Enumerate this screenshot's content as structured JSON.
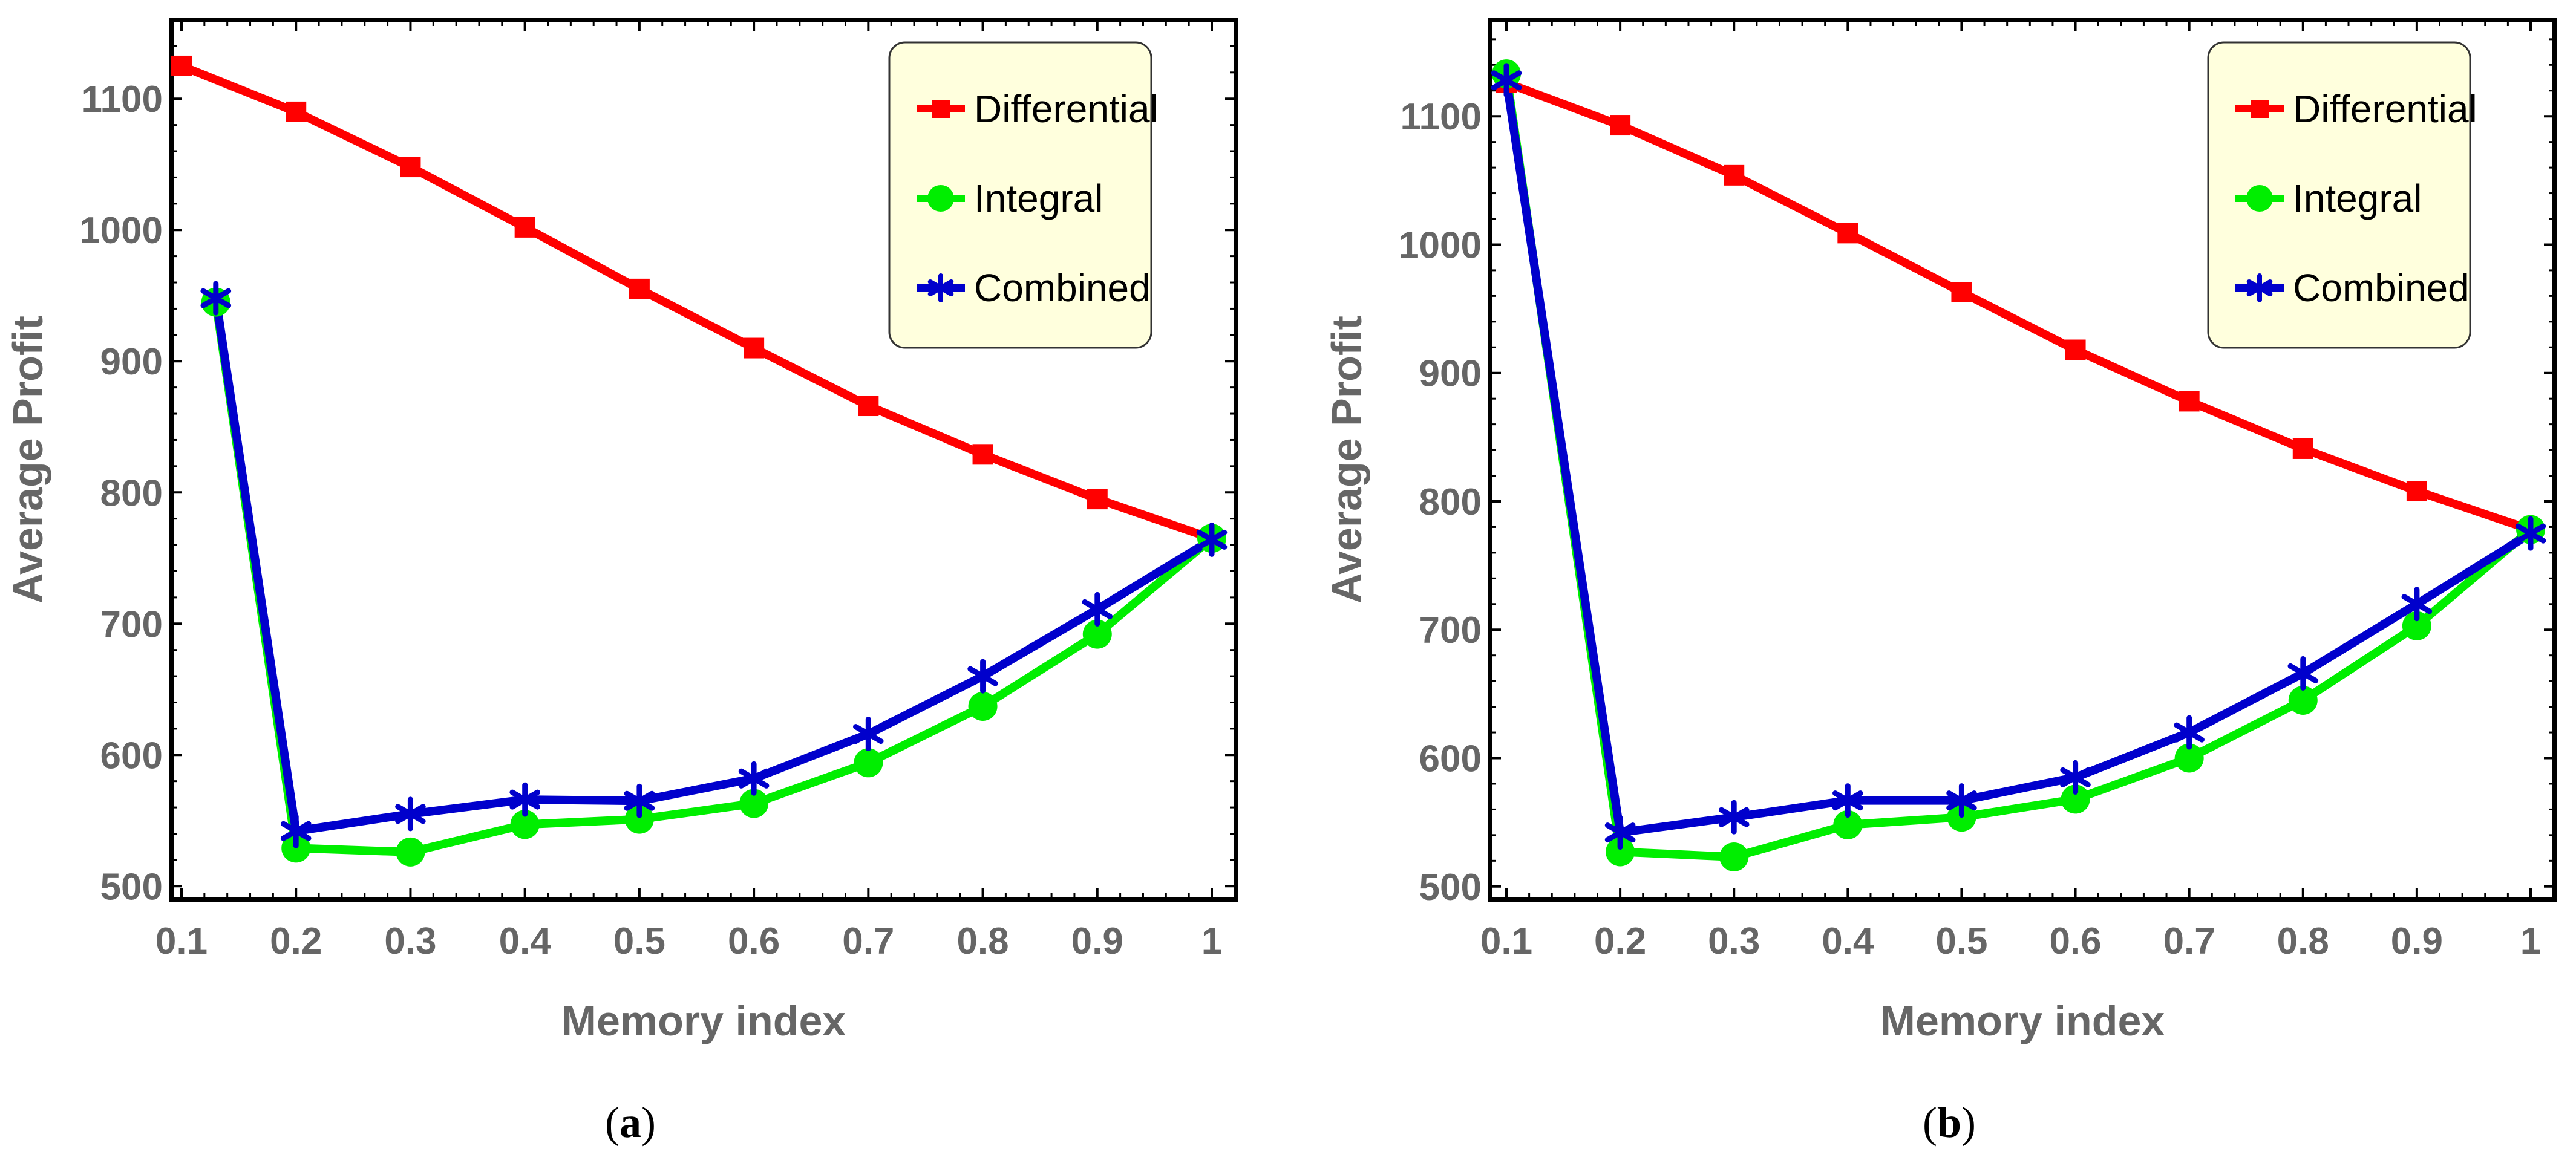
{
  "colors": {
    "Differential": "#ff0000",
    "Integral": "#00ee00",
    "Combined": "#0000cc",
    "legend_bg": "#ffffdd",
    "tick": "#666666"
  },
  "chart_data": [
    {
      "type": "line",
      "caption_letter": "a",
      "xlabel": "Memory index",
      "ylabel": "Average Profit",
      "xlim": [
        0.1,
        1.0
      ],
      "ylim": [
        490,
        1160
      ],
      "xticks": [
        0.1,
        0.2,
        0.3,
        0.4,
        0.5,
        0.6,
        0.7,
        0.8,
        0.9,
        1.0
      ],
      "xtick_labels": [
        "0.1",
        "0.2",
        "0.3",
        "0.4",
        "0.5",
        "0.6",
        "0.7",
        "0.8",
        "0.9",
        "1"
      ],
      "yticks": [
        500,
        600,
        700,
        800,
        900,
        1000,
        1100
      ],
      "ytick_labels": [
        "500",
        "600",
        "700",
        "800",
        "900",
        "1000",
        "1100"
      ],
      "legend": [
        "Differential",
        "Integral",
        "Combined"
      ],
      "legend_position": "top-right",
      "series": [
        {
          "name": "Differential",
          "marker": "square",
          "x": [
            0.1,
            0.2,
            0.3,
            0.4,
            0.5,
            0.6,
            0.7,
            0.8,
            0.9,
            1.0
          ],
          "y": [
            1125,
            1090,
            1048,
            1002,
            955,
            910,
            866,
            829,
            795,
            765
          ]
        },
        {
          "name": "Integral",
          "marker": "circle",
          "x": [
            0.13,
            0.2,
            0.3,
            0.4,
            0.5,
            0.6,
            0.7,
            0.8,
            0.9,
            1.0
          ],
          "y": [
            945,
            529,
            526,
            547,
            551,
            563,
            594,
            637,
            692,
            765
          ]
        },
        {
          "name": "Combined",
          "marker": "star",
          "x": [
            0.13,
            0.2,
            0.3,
            0.4,
            0.5,
            0.6,
            0.7,
            0.8,
            0.9,
            1.0
          ],
          "y": [
            948,
            542,
            555,
            566,
            565,
            582,
            616,
            660,
            711,
            764
          ]
        }
      ]
    },
    {
      "type": "line",
      "caption_letter": "b",
      "xlabel": "Memory index",
      "ylabel": "Average Profit",
      "xlim": [
        0.1,
        1.0
      ],
      "ylim": [
        490,
        1175
      ],
      "xticks": [
        0.1,
        0.2,
        0.3,
        0.4,
        0.5,
        0.6,
        0.7,
        0.8,
        0.9,
        1.0
      ],
      "xtick_labels": [
        "0.1",
        "0.2",
        "0.3",
        "0.4",
        "0.5",
        "0.6",
        "0.7",
        "0.8",
        "0.9",
        "1"
      ],
      "yticks": [
        500,
        600,
        700,
        800,
        900,
        1000,
        1100
      ],
      "ytick_labels": [
        "500",
        "600",
        "700",
        "800",
        "900",
        "1000",
        "1100"
      ],
      "legend": [
        "Differential",
        "Integral",
        "Combined"
      ],
      "legend_position": "top-right",
      "series": [
        {
          "name": "Differential",
          "marker": "square",
          "x": [
            0.1,
            0.2,
            0.3,
            0.4,
            0.5,
            0.6,
            0.7,
            0.8,
            0.9,
            1.0
          ],
          "y": [
            1126,
            1093,
            1054,
            1009,
            963,
            918,
            878,
            841,
            808,
            778
          ]
        },
        {
          "name": "Integral",
          "marker": "circle",
          "x": [
            0.1,
            0.2,
            0.3,
            0.4,
            0.5,
            0.6,
            0.7,
            0.8,
            0.9,
            1.0
          ],
          "y": [
            1133,
            527,
            523,
            548,
            554,
            568,
            600,
            645,
            703,
            778
          ]
        },
        {
          "name": "Combined",
          "marker": "star",
          "x": [
            0.1,
            0.2,
            0.3,
            0.4,
            0.5,
            0.6,
            0.7,
            0.8,
            0.9,
            1.0
          ],
          "y": [
            1128,
            542,
            554,
            567,
            567,
            585,
            620,
            666,
            720,
            775
          ]
        }
      ]
    }
  ]
}
